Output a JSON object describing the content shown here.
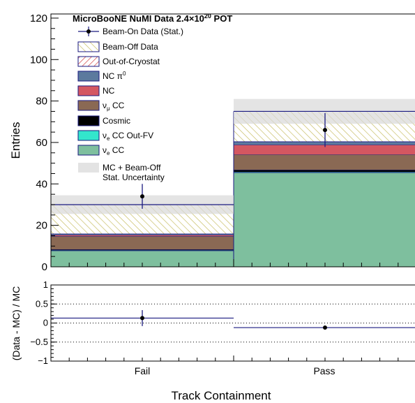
{
  "chart_data": [
    {
      "type": "bar",
      "stacked": true,
      "title": "MicroBooNE NuMI Data 2.4×10²⁰ POT",
      "title_main": "MicroBooNE NuMI Data 2.4×10",
      "title_exp": "20",
      "title_suffix": " POT",
      "xlabel": "Track Containment",
      "ylabel": "Entries",
      "categories": [
        "Fail",
        "Pass"
      ],
      "ylim": [
        0,
        122
      ],
      "yticks": [
        "0",
        "20",
        "40",
        "60",
        "80",
        "100",
        "120"
      ],
      "series": [
        {
          "name": "νe CC",
          "key": "nue_cc",
          "color": "#7ebf9e",
          "values": [
            7.8,
            45.5
          ]
        },
        {
          "name": "νe CC Out-FV",
          "key": "nue_outfv",
          "color": "#33e6cc",
          "values": [
            0.2,
            0.3
          ]
        },
        {
          "name": "Cosmic",
          "key": "cosmic",
          "color": "#000000",
          "values": [
            0.4,
            1.0
          ]
        },
        {
          "name": "νμ CC",
          "key": "numu_cc",
          "color": "#8a6954",
          "values": [
            6.4,
            7.4
          ]
        },
        {
          "name": "NC",
          "key": "nc",
          "color": "#d45761",
          "values": [
            0.6,
            4.7
          ]
        },
        {
          "name": "NC π⁰",
          "key": "nc_pi0",
          "color": "#5c7a9e",
          "values": [
            0.5,
            1.4
          ]
        },
        {
          "name": "Out-of-Cryostat",
          "key": "ooc",
          "color": "#cc3333",
          "values": [
            0.1,
            0.2
          ]
        },
        {
          "name": "Beam-Off Data",
          "key": "beam_off",
          "color": "#c9bf66",
          "values": [
            14.0,
            14.5
          ]
        }
      ],
      "mc_total": [
        30.0,
        75.0
      ],
      "mc_uncertainty": [
        4.5,
        6.0
      ],
      "data": {
        "name": "Beam-On Data (Stat.)",
        "values": [
          34.0,
          66.0
        ],
        "errors": [
          6.0,
          8.2
        ],
        "color": "#000000",
        "errcolor": "#1a1a80"
      },
      "uncertainty_label_line1": "MC + Beam-Off",
      "uncertainty_label_line2": "Stat. Uncertainty",
      "legend_position": "top-left"
    },
    {
      "type": "scatter",
      "ylabel": "(Data - MC) / MC",
      "categories": [
        "Fail",
        "Pass"
      ],
      "ylim": [
        -1,
        1
      ],
      "yticks": [
        "-1",
        "-0.5",
        "0",
        "0.5",
        "1"
      ],
      "ratio_values": [
        0.13,
        -0.12
      ],
      "ratio_errors": [
        0.21,
        0.05
      ],
      "mc_ratio_band": [
        0.13,
        -0.12
      ],
      "dotted_grid": [
        -0.5,
        0,
        0.5
      ]
    }
  ]
}
